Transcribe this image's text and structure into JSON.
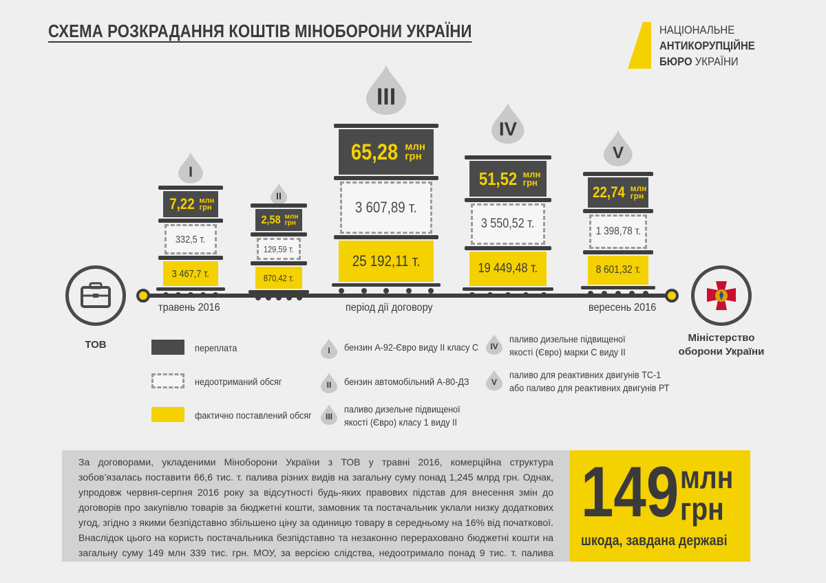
{
  "title": "СХЕМА РОЗКРАДАННЯ КОШТІВ МІНОБОРОНИ УКРАЇНИ",
  "logo": {
    "line1": "НАЦІОНАЛЬНЕ",
    "line2": "АНТИКОРУПЦІЙНЕ",
    "line3_bold": "БЮРО",
    "line3_rest": " УКРАЇНИ",
    "color": "#f4d100"
  },
  "timeline": {
    "start": "травень 2016",
    "middle": "період дії договору",
    "end": "вересень  2016"
  },
  "parties": {
    "from": "ТОВ",
    "to_line1": "Міністерство",
    "to_line2": "оборони України"
  },
  "tanks": [
    {
      "numeral": "I",
      "overpay": "7,22",
      "undelivered": "332,5 т.",
      "delivered": "3 467,7 т."
    },
    {
      "numeral": "II",
      "overpay": "2,58",
      "undelivered": "129,59 т.",
      "delivered": "870,42 т."
    },
    {
      "numeral": "III",
      "overpay": "65,28",
      "undelivered": "3 607,89 т.",
      "delivered": "25 192,11 т."
    },
    {
      "numeral": "IV",
      "overpay": "51,52",
      "undelivered": "3 550,52 т.",
      "delivered": "19 449,48 т."
    },
    {
      "numeral": "V",
      "overpay": "22,74",
      "undelivered": "1 398,78 т.",
      "delivered": "8 601,32 т."
    }
  ],
  "units": {
    "mln": "млн",
    "uah": "грн"
  },
  "legend": {
    "overpay": "переплата",
    "undelivered": "недоотриманий обсяг",
    "delivered": "фактично поставлений обсяг"
  },
  "fuel_types": [
    {
      "numeral": "I",
      "lines": [
        "бензин  А-92-Євро виду II класу С"
      ]
    },
    {
      "numeral": "II",
      "lines": [
        "бензин автомобільний А-80-ДЗ"
      ]
    },
    {
      "numeral": "III",
      "lines": [
        "паливо дизельне підвищеної",
        "якості (Євро) класу 1 виду II"
      ]
    },
    {
      "numeral": "IV",
      "lines": [
        "паливо дизельне підвищеної",
        "якості (Євро) марки С виду II"
      ]
    },
    {
      "numeral": "V",
      "lines": [
        "паливо для реактивних двигунів ТС-1",
        "або паливо для реактивних двигунів РТ"
      ]
    }
  ],
  "description": "За договорами, укладеними Міноборони України з ТОВ у травні 2016, комерційна структура зобов’язалась поставити 66,6 тис. т. палива різних видів на загальну суму понад 1,245 млрд грн. Однак, упродовж червня-серпня 2016 року за відсутності будь-яких правових підстав для внесення змін до договорів про закупівлю товарів за бюджетні кошти, замовник та постачальник уклали низку додаткових угод, згідно з якими безпідставно збільшено ціну за одиницю товару в середньому на 16% від початкової. Внаслідок цього на користь постачальника безпідставно та незаконно перераховано бюджетні кошти на загальну суму 149 млн 339 тис. грн. МОУ, за версією слідства, недоотримало понад 9 тис. т. палива",
  "total": {
    "number": "149",
    "unit1": "млн",
    "unit2": "грн",
    "caption": "шкода, завдана державі"
  },
  "colors": {
    "yellow": "#f4d100",
    "dark": "#4a4a4a",
    "background": "#efefef",
    "panel": "#d2d2d2"
  }
}
